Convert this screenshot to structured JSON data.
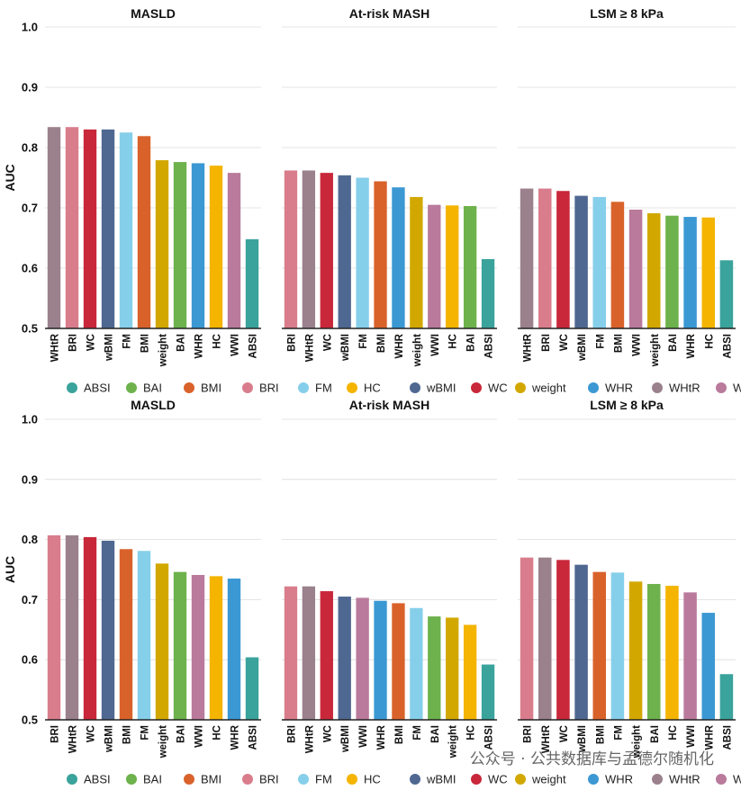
{
  "colors": {
    "ABSI": "#3aa39b",
    "BAI": "#6db24c",
    "BMI": "#d9622b",
    "BRI": "#d97d8c",
    "FM": "#86cfea",
    "HC": "#f4b400",
    "wBMI": "#4f6891",
    "WC": "#c8283a",
    "weight": "#d2a800",
    "WHR": "#3b98d3",
    "WHtR": "#9a818c",
    "WWI": "#b97a9c"
  },
  "legend": {
    "placement": "bottom",
    "items": [
      "ABSI",
      "BAI",
      "BMI",
      "BRI",
      "FM",
      "HC",
      "wBMI",
      "WC",
      "weight",
      "WHR",
      "WHtR",
      "WWI"
    ]
  },
  "watermark": "公众号 · 公共数据库与孟德尔随机化",
  "chart_data": [
    {
      "type": "bar",
      "title": "MASLD",
      "ylabel": "AUC",
      "ylim": [
        0.5,
        1.0
      ],
      "yticks": [
        "0.5",
        "0.6",
        "0.7",
        "0.8",
        "0.9",
        "1.0"
      ],
      "categories": [
        "WHtR",
        "BRI",
        "WC",
        "wBMI",
        "FM",
        "BMI",
        "weight",
        "BAI",
        "WHR",
        "HC",
        "WWI",
        "ABSI"
      ],
      "values": [
        0.834,
        0.834,
        0.83,
        0.83,
        0.825,
        0.819,
        0.779,
        0.776,
        0.774,
        0.77,
        0.758,
        0.648
      ]
    },
    {
      "type": "bar",
      "title": "At-risk MASH",
      "ylim": [
        0.5,
        1.0
      ],
      "categories": [
        "BRI",
        "WHtR",
        "WC",
        "wBMI",
        "FM",
        "BMI",
        "WHR",
        "weight",
        "WWI",
        "HC",
        "BAI",
        "ABSI"
      ],
      "values": [
        0.762,
        0.762,
        0.758,
        0.754,
        0.75,
        0.744,
        0.734,
        0.718,
        0.705,
        0.704,
        0.703,
        0.615
      ]
    },
    {
      "type": "bar",
      "title": "LSM ≥ 8 kPa",
      "ylim": [
        0.5,
        1.0
      ],
      "categories": [
        "WHtR",
        "BRI",
        "WC",
        "wBMI",
        "FM",
        "BMI",
        "WWI",
        "weight",
        "BAI",
        "WHR",
        "HC",
        "ABSI"
      ],
      "values": [
        0.732,
        0.732,
        0.728,
        0.72,
        0.718,
        0.71,
        0.697,
        0.691,
        0.687,
        0.685,
        0.684,
        0.613
      ]
    },
    {
      "type": "bar",
      "title": "MASLD",
      "ylabel": "AUC",
      "ylim": [
        0.5,
        1.0
      ],
      "yticks": [
        "0.5",
        "0.6",
        "0.7",
        "0.8",
        "0.9",
        "1.0"
      ],
      "categories": [
        "BRI",
        "WHtR",
        "WC",
        "wBMI",
        "BMI",
        "FM",
        "weight",
        "BAI",
        "WWI",
        "HC",
        "WHR",
        "ABSI"
      ],
      "values": [
        0.807,
        0.807,
        0.804,
        0.798,
        0.784,
        0.781,
        0.76,
        0.746,
        0.741,
        0.739,
        0.735,
        0.604
      ]
    },
    {
      "type": "bar",
      "title": "At-risk MASH",
      "ylim": [
        0.5,
        1.0
      ],
      "categories": [
        "BRI",
        "WHtR",
        "WC",
        "wBMI",
        "WWI",
        "WHR",
        "BMI",
        "FM",
        "BAI",
        "weight",
        "HC",
        "ABSI"
      ],
      "values": [
        0.722,
        0.722,
        0.714,
        0.705,
        0.703,
        0.698,
        0.694,
        0.686,
        0.672,
        0.67,
        0.658,
        0.592
      ]
    },
    {
      "type": "bar",
      "title": "LSM ≥ 8 kPa",
      "ylim": [
        0.5,
        1.0
      ],
      "categories": [
        "BRI",
        "WHtR",
        "WC",
        "wBMI",
        "BMI",
        "FM",
        "weight",
        "BAI",
        "HC",
        "WWI",
        "WHR",
        "ABSI"
      ],
      "values": [
        0.77,
        0.77,
        0.766,
        0.758,
        0.746,
        0.745,
        0.73,
        0.726,
        0.723,
        0.712,
        0.678,
        0.576
      ]
    }
  ]
}
